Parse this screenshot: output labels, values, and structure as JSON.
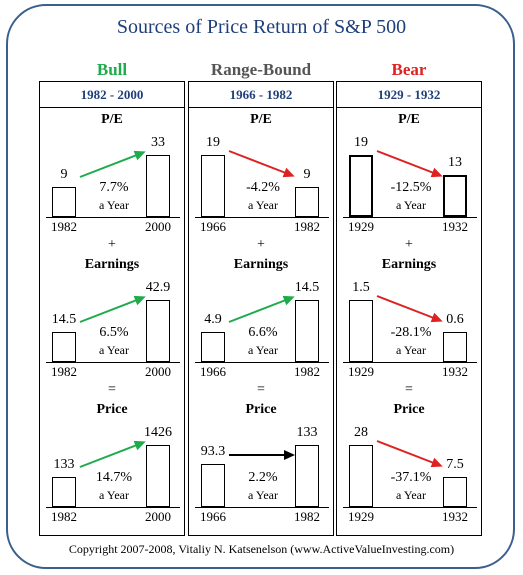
{
  "title": "Sources of  Price Return of S&P 500",
  "colors": {
    "bull": "#1faa4b",
    "range": "#555555",
    "bear": "#dd2222",
    "neutral": "#000000"
  },
  "columns": [
    {
      "key": "bull",
      "heading": "Bull",
      "period": "1982 - 2000",
      "sections": [
        {
          "label": "P/E",
          "op": "",
          "start_year": "1982",
          "end_year": "2000",
          "start_value": "9",
          "end_value": "33",
          "start_num": 9,
          "end_num": 33,
          "rate": "7.7%",
          "unit": "a Year",
          "arrow": "green"
        },
        {
          "label": "Earnings",
          "op": "+",
          "start_year": "1982",
          "end_year": "2000",
          "start_value": "14.5",
          "end_value": "42.9",
          "start_num": 14.5,
          "end_num": 42.9,
          "rate": "6.5%",
          "unit": "a Year",
          "arrow": "green"
        },
        {
          "label": "Price",
          "op": "=",
          "start_year": "1982",
          "end_year": "2000",
          "start_value": "133",
          "end_value": "1426",
          "start_num": 133,
          "end_num": 1426,
          "rate": "14.7%",
          "unit": "a Year",
          "arrow": "green"
        }
      ]
    },
    {
      "key": "range",
      "heading": "Range-Bound",
      "period": "1966 - 1982",
      "sections": [
        {
          "label": "P/E",
          "op": "",
          "start_year": "1966",
          "end_year": "1982",
          "start_value": "19",
          "end_value": "9",
          "start_num": 19,
          "end_num": 9,
          "rate": "-4.2%",
          "unit": "a Year",
          "arrow": "red"
        },
        {
          "label": "Earnings",
          "op": "+",
          "start_year": "1966",
          "end_year": "1982",
          "start_value": "4.9",
          "end_value": "14.5",
          "start_num": 4.9,
          "end_num": 14.5,
          "rate": "6.6%",
          "unit": "a Year",
          "arrow": "green"
        },
        {
          "label": "Price",
          "op": "=",
          "start_year": "1966",
          "end_year": "1982",
          "start_value": "93.3",
          "end_value": "133",
          "start_num": 93.3,
          "end_num": 133,
          "rate": "2.2%",
          "unit": "a Year",
          "arrow": "black"
        }
      ]
    },
    {
      "key": "bear",
      "heading": "Bear",
      "period": "1929 - 1932",
      "sections": [
        {
          "label": "P/E",
          "op": "",
          "start_year": "1929",
          "end_year": "1932",
          "start_value": "19",
          "end_value": "13",
          "start_num": 19,
          "end_num": 13,
          "rate": "-12.5%",
          "unit": "a Year",
          "arrow": "red"
        },
        {
          "label": "Earnings",
          "op": "+",
          "start_year": "1929",
          "end_year": "1932",
          "start_value": "1.5",
          "end_value": "0.6",
          "start_num": 1.5,
          "end_num": 0.6,
          "rate": "-28.1%",
          "unit": "a Year",
          "arrow": "red"
        },
        {
          "label": "Price",
          "op": "=",
          "start_year": "1929",
          "end_year": "1932",
          "start_value": "28",
          "end_value": "7.5",
          "start_num": 28,
          "end_num": 7.5,
          "rate": "-37.1%",
          "unit": "a Year",
          "arrow": "red"
        }
      ]
    }
  ],
  "footer": "Copyright 2007-2008, Vitaliy N. Katsenelson (www.ActiveValueInvesting.com)"
}
